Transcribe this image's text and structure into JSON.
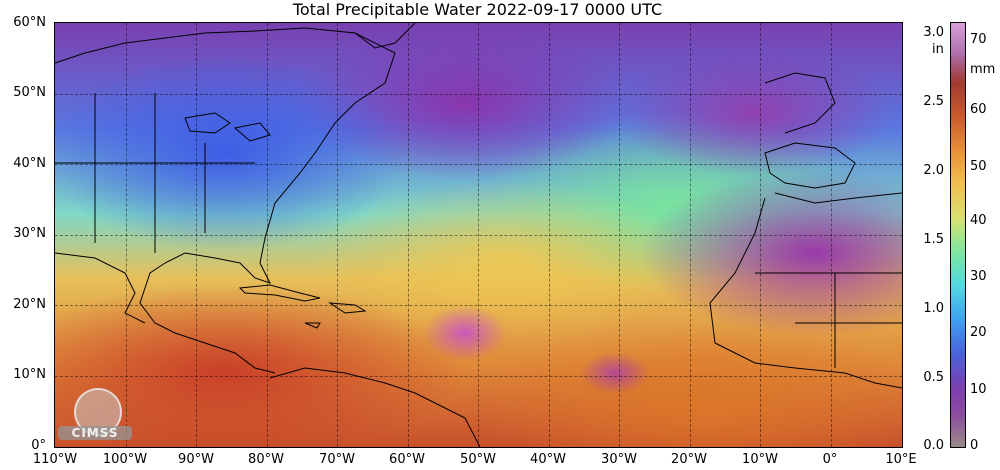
{
  "title": "Total Precipitable Water  2022-09-17 0000 UTC",
  "latitudes": [
    "60°N",
    "50°N",
    "40°N",
    "30°N",
    "20°N",
    "10°N",
    "0°"
  ],
  "longitudes": [
    "110°W",
    "100°W",
    "90°W",
    "80°W",
    "70°W",
    "60°W",
    "50°W",
    "40°W",
    "30°W",
    "20°W",
    "10°W",
    "0°",
    "10°E"
  ],
  "colorbar": {
    "inch_unit": "in",
    "mm_unit": "mm",
    "inch_ticks": [
      "3.0",
      "2.5",
      "2.0",
      "1.5",
      "1.0",
      "0.5",
      "0.0"
    ],
    "mm_ticks": [
      "70",
      "60",
      "50",
      "40",
      "30",
      "20",
      "10",
      "0"
    ]
  },
  "logo": {
    "text": "CIMSS",
    "icon": "cimss-logo-icon"
  }
}
